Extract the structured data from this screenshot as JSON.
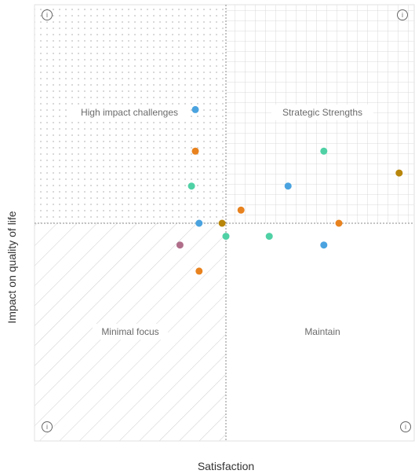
{
  "chart_data": {
    "type": "scatter",
    "xlabel": "Satisfaction",
    "ylabel": "Impact on quality of life",
    "xlim": [
      -1,
      1
    ],
    "ylim": [
      -1,
      1
    ],
    "grid": "top-right quadrant gridded, top-left dotted, bottom-left hatched, bottom-right plain",
    "legend": "none",
    "quadrants": [
      {
        "key": "top-left",
        "label": "High impact challenges"
      },
      {
        "key": "top-right",
        "label": "Strategic Strengths"
      },
      {
        "key": "bottom-left",
        "label": "Minimal focus"
      },
      {
        "key": "bottom-right",
        "label": "Maintain"
      }
    ],
    "info_icon": {
      "name": "info-icon",
      "glyph": "i"
    },
    "points": [
      {
        "x": -0.16,
        "y": 0.52,
        "color": "#4AA3DF"
      },
      {
        "x": -0.16,
        "y": 0.33,
        "color": "#E8821E"
      },
      {
        "x": -0.18,
        "y": 0.17,
        "color": "#4FD1A5"
      },
      {
        "x": -0.14,
        "y": 0.0,
        "color": "#4AA3DF"
      },
      {
        "x": -0.02,
        "y": 0.0,
        "color": "#B8860B"
      },
      {
        "x": 0.08,
        "y": 0.06,
        "color": "#E8821E"
      },
      {
        "x": 0.0,
        "y": -0.06,
        "color": "#4FD1A5"
      },
      {
        "x": 0.23,
        "y": -0.06,
        "color": "#4FD1A5"
      },
      {
        "x": 0.33,
        "y": 0.17,
        "color": "#4AA3DF"
      },
      {
        "x": 0.52,
        "y": 0.33,
        "color": "#4FD1A5"
      },
      {
        "x": 0.6,
        "y": 0.0,
        "color": "#E8821E"
      },
      {
        "x": 0.52,
        "y": -0.1,
        "color": "#4AA3DF"
      },
      {
        "x": 0.92,
        "y": 0.23,
        "color": "#B8860B"
      },
      {
        "x": -0.24,
        "y": -0.1,
        "color": "#B06E8A"
      },
      {
        "x": -0.14,
        "y": -0.22,
        "color": "#E8821E"
      }
    ]
  }
}
